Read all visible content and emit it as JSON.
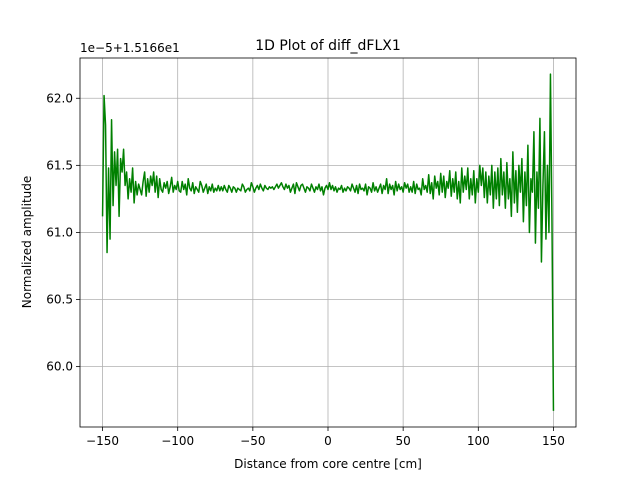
{
  "chart_data": {
    "type": "line",
    "title": "1D Plot of diff_dFLX1",
    "xlabel": "Distance from core centre [cm]",
    "ylabel": "Normalized amplitude",
    "offset_label": "1e−5+1.5166e1",
    "xlim": [
      -165,
      165
    ],
    "ylim": [
      59.55,
      62.3
    ],
    "xticks": [
      -150,
      -100,
      -50,
      0,
      50,
      100,
      150
    ],
    "xtick_labels": [
      "−150",
      "−100",
      "−50",
      "0",
      "50",
      "100",
      "150"
    ],
    "yticks": [
      60.0,
      60.5,
      61.0,
      61.5,
      62.0
    ],
    "ytick_labels": [
      "60.0",
      "60.5",
      "61.0",
      "61.5",
      "62.0"
    ],
    "grid": true,
    "line_color": "#008000",
    "series": [
      {
        "x": [
          -150,
          -149,
          -148,
          -147,
          -146,
          -145,
          -144,
          -143,
          -142,
          -141,
          -140,
          -139,
          -138,
          -137,
          -136,
          -135,
          -134,
          -133,
          -132,
          -131,
          -130,
          -129,
          -128,
          -127,
          -126,
          -125,
          -124,
          -123,
          -122,
          -121,
          -120,
          -119,
          -118,
          -117,
          -116,
          -115,
          -114,
          -113,
          -112,
          -111,
          -110,
          -109,
          -108,
          -107,
          -106,
          -105,
          -104,
          -103,
          -102,
          -101,
          -100,
          -99,
          -98,
          -97,
          -96,
          -95,
          -94,
          -93,
          -92,
          -91,
          -90,
          -89,
          -88,
          -87,
          -86,
          -85,
          -84,
          -83,
          -82,
          -81,
          -80,
          -79,
          -78,
          -77,
          -76,
          -75,
          -74,
          -73,
          -72,
          -71,
          -70,
          -69,
          -68,
          -67,
          -66,
          -65,
          -64,
          -63,
          -62,
          -61,
          -60,
          -59,
          -58,
          -57,
          -56,
          -55,
          -54,
          -53,
          -52,
          -51,
          -50,
          -49,
          -48,
          -47,
          -46,
          -45,
          -44,
          -43,
          -42,
          -41,
          -40,
          -39,
          -38,
          -37,
          -36,
          -35,
          -34,
          -33,
          -32,
          -31,
          -30,
          -29,
          -28,
          -27,
          -26,
          -25,
          -24,
          -23,
          -22,
          -21,
          -20,
          -19,
          -18,
          -17,
          -16,
          -15,
          -14,
          -13,
          -12,
          -11,
          -10,
          -9,
          -8,
          -7,
          -6,
          -5,
          -4,
          -3,
          -2,
          -1,
          0,
          1,
          2,
          3,
          4,
          5,
          6,
          7,
          8,
          9,
          10,
          11,
          12,
          13,
          14,
          15,
          16,
          17,
          18,
          19,
          20,
          21,
          22,
          23,
          24,
          25,
          26,
          27,
          28,
          29,
          30,
          31,
          32,
          33,
          34,
          35,
          36,
          37,
          38,
          39,
          40,
          41,
          42,
          43,
          44,
          45,
          46,
          47,
          48,
          49,
          50,
          51,
          52,
          53,
          54,
          55,
          56,
          57,
          58,
          59,
          60,
          61,
          62,
          63,
          64,
          65,
          66,
          67,
          68,
          69,
          70,
          71,
          72,
          73,
          74,
          75,
          76,
          77,
          78,
          79,
          80,
          81,
          82,
          83,
          84,
          85,
          86,
          87,
          88,
          89,
          90,
          91,
          92,
          93,
          94,
          95,
          96,
          97,
          98,
          99,
          100,
          101,
          102,
          103,
          104,
          105,
          106,
          107,
          108,
          109,
          110,
          111,
          112,
          113,
          114,
          115,
          116,
          117,
          118,
          119,
          120,
          121,
          122,
          123,
          124,
          125,
          126,
          127,
          128,
          129,
          130,
          131,
          132,
          133,
          134,
          135,
          136,
          137,
          138,
          139,
          140,
          141,
          142,
          143,
          144,
          145,
          146,
          147,
          148,
          149,
          150
        ],
        "y": [
          61.12,
          62.02,
          61.8,
          60.85,
          61.48,
          60.95,
          61.84,
          61.2,
          61.6,
          61.35,
          61.62,
          61.12,
          61.55,
          61.45,
          61.62,
          61.35,
          61.45,
          61.25,
          61.4,
          61.3,
          61.48,
          61.22,
          61.38,
          61.28,
          61.36,
          61.32,
          61.28,
          61.38,
          61.45,
          61.27,
          61.4,
          61.3,
          61.42,
          61.35,
          61.45,
          61.3,
          61.42,
          61.26,
          61.4,
          61.32,
          61.3,
          61.37,
          61.33,
          61.38,
          61.29,
          61.34,
          61.41,
          61.3,
          61.35,
          61.32,
          61.38,
          61.31,
          61.3,
          61.38,
          61.32,
          61.36,
          61.28,
          61.4,
          61.33,
          61.31,
          61.37,
          61.29,
          61.34,
          61.32,
          61.3,
          61.38,
          61.35,
          61.3,
          61.33,
          61.36,
          61.29,
          61.34,
          61.31,
          61.36,
          61.3,
          61.33,
          61.31,
          61.35,
          61.31,
          61.34,
          61.31,
          61.35,
          61.32,
          61.3,
          61.35,
          61.33,
          61.3,
          61.34,
          61.33,
          61.3,
          61.33,
          61.32,
          61.31,
          61.36,
          61.34,
          61.3,
          61.32,
          61.33,
          61.31,
          61.37,
          61.34,
          61.3,
          61.33,
          61.35,
          61.32,
          61.36,
          61.33,
          61.31,
          61.35,
          61.33,
          61.32,
          61.34,
          61.33,
          61.34,
          61.32,
          61.34,
          61.36,
          61.33,
          61.35,
          61.37,
          61.34,
          61.32,
          61.36,
          61.33,
          61.35,
          61.3,
          61.33,
          61.36,
          61.29,
          61.37,
          61.34,
          61.31,
          61.35,
          61.36,
          61.33,
          61.3,
          61.34,
          61.33,
          61.31,
          61.36,
          61.33,
          61.3,
          61.34,
          61.32,
          61.36,
          61.31,
          61.34,
          61.28,
          61.33,
          61.35,
          61.32,
          61.37,
          61.32,
          61.35,
          61.31,
          61.34,
          61.3,
          61.33,
          61.32,
          61.35,
          61.3,
          61.33,
          61.31,
          61.34,
          61.33,
          61.31,
          61.36,
          61.33,
          61.3,
          61.35,
          61.29,
          61.36,
          61.32,
          61.33,
          61.31,
          61.36,
          61.28,
          61.34,
          61.33,
          61.3,
          61.37,
          61.31,
          61.34,
          61.3,
          61.33,
          61.36,
          61.29,
          61.35,
          61.32,
          61.4,
          61.29,
          61.36,
          61.32,
          61.35,
          61.28,
          61.38,
          61.31,
          61.36,
          61.32,
          61.34,
          61.3,
          61.37,
          61.33,
          61.36,
          61.3,
          61.34,
          61.3,
          61.38,
          61.29,
          61.36,
          61.32,
          61.33,
          61.28,
          61.4,
          61.32,
          61.35,
          61.3,
          61.43,
          61.29,
          61.37,
          61.25,
          61.42,
          61.33,
          61.38,
          61.28,
          61.44,
          61.3,
          61.42,
          61.26,
          61.38,
          61.33,
          61.46,
          61.27,
          61.4,
          61.3,
          61.45,
          61.25,
          61.38,
          61.22,
          61.48,
          61.3,
          61.42,
          61.32,
          61.48,
          61.25,
          61.4,
          61.28,
          61.46,
          61.22,
          61.4,
          61.3,
          61.5,
          61.35,
          61.48,
          61.26,
          61.45,
          61.22,
          61.42,
          61.28,
          61.5,
          61.18,
          61.45,
          61.25,
          61.48,
          61.2,
          61.55,
          61.28,
          61.45,
          61.18,
          61.52,
          61.25,
          61.4,
          61.12,
          61.6,
          61.22,
          61.46,
          61.15,
          61.5,
          61.3,
          61.55,
          61.08,
          61.45,
          61.2,
          61.65,
          61.0,
          61.4,
          61.3,
          61.75,
          60.92,
          61.45,
          61.18,
          61.85,
          60.78,
          61.35,
          61.75,
          60.95,
          61.5,
          61.0,
          62.18,
          61.1,
          59.67
        ]
      }
    ]
  }
}
